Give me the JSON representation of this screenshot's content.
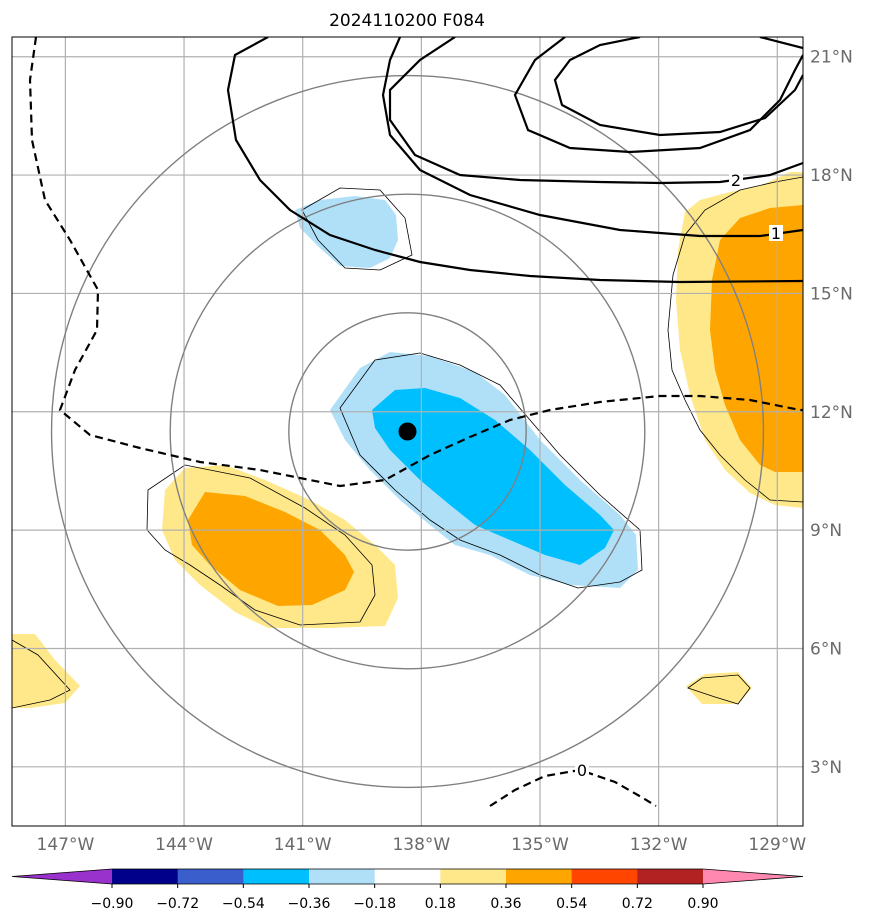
{
  "chart_data": {
    "type": "map",
    "title": "2024110200 F084",
    "xaxis": {
      "ticks": [
        -147,
        -144,
        -141,
        -138,
        -135,
        -132,
        -129
      ],
      "tick_labels": [
        "147°W",
        "144°W",
        "141°W",
        "138°W",
        "135°W",
        "132°W",
        "129°W"
      ],
      "range": [
        -148.35,
        -128.35
      ]
    },
    "yaxis": {
      "ticks": [
        3,
        6,
        9,
        12,
        15,
        18,
        21
      ],
      "tick_labels": [
        "3°N",
        "6°N",
        "9°N",
        "12°N",
        "15°N",
        "18°N",
        "21°N"
      ],
      "range": [
        1.5,
        21.5
      ]
    },
    "grid": true,
    "center_marker": {
      "lon": -138.35,
      "lat": 11.5
    },
    "range_rings_degrees": [
      3,
      6,
      9
    ],
    "contour_labels": [
      "2",
      "1",
      "0"
    ],
    "colorbar": {
      "extend": "both",
      "levels": [
        -0.9,
        -0.72,
        -0.54,
        -0.36,
        -0.18,
        0.18,
        0.36,
        0.54,
        0.72,
        0.9
      ],
      "tick_labels": [
        "−0.90",
        "−0.72",
        "−0.54",
        "−0.36",
        "−0.18",
        "0.18",
        "0.36",
        "0.54",
        "0.72",
        "0.90"
      ],
      "colors": [
        "#9932cc",
        "#00008b",
        "#3a5fcd",
        "#00bfff",
        "#b0e0f8",
        "#ffffff",
        "#ffe88a",
        "#ffa500",
        "#ff4500",
        "#b22222",
        "#ff88b0"
      ]
    }
  }
}
